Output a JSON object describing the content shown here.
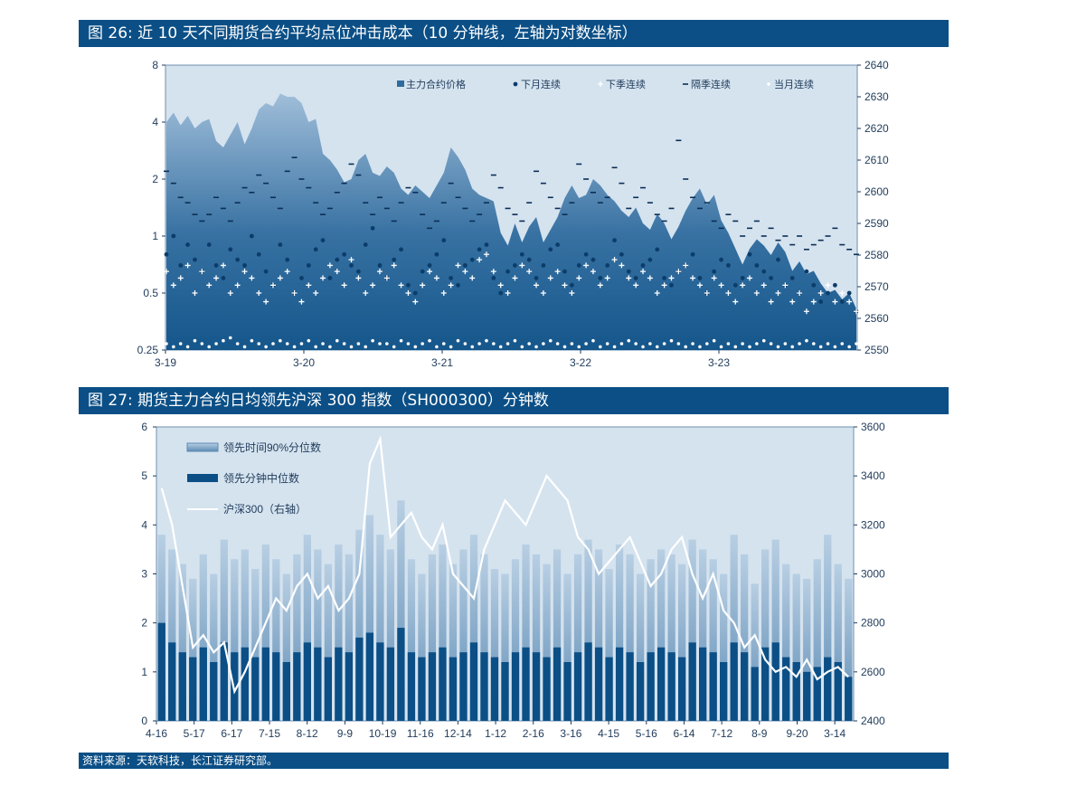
{
  "titles": {
    "fig26": "图 26: 近 10 天不同期货合约平均点位冲击成本（10 分钟线，左轴为对数坐标）",
    "fig27": "图 27: 期货主力合约日均领先沪深 300 指数（SH000300）分钟数"
  },
  "source": "资料来源：天软科技，长江证券研究部。",
  "colors": {
    "title_bar": "#0b4f86",
    "plot_bg": "#d5e3ef",
    "series_dark": "#0b4f86",
    "series_light": "#7fa6c8"
  },
  "chart_data": [
    {
      "id": "fig26",
      "type": "scatter",
      "title": "图 26: 近 10 天不同期货合约平均点位冲击成本（10 分钟线，左轴为对数坐标）",
      "x_ticks": [
        "3-19",
        "3-20",
        "3-21",
        "3-22",
        "3-23"
      ],
      "y_left_scale": "log2",
      "y_left_ticks": [
        "0.25",
        "0.5",
        "1",
        "2",
        "4",
        "8"
      ],
      "y_left_range": [
        0.25,
        8
      ],
      "y_right_ticks": [
        "2550",
        "2560",
        "2570",
        "2580",
        "2590",
        "2600",
        "2610",
        "2620",
        "2630",
        "2640"
      ],
      "y_right_range": [
        2550,
        2640
      ],
      "legend_position": "top-right",
      "series": [
        {
          "name": "主力合约价格",
          "axis": "right",
          "kind": "area",
          "values": [
            2622,
            2625,
            2621,
            2624,
            2620,
            2622,
            2623,
            2616,
            2614,
            2618,
            2622,
            2615,
            2620,
            2626,
            2628,
            2627,
            2631,
            2630,
            2630,
            2628,
            2622,
            2623,
            2612,
            2610,
            2607,
            2603,
            2604,
            2610,
            2612,
            2606,
            2605,
            2608,
            2606,
            2601,
            2599,
            2602,
            2600,
            2598,
            2602,
            2606,
            2614,
            2611,
            2607,
            2601,
            2599,
            2598,
            2597,
            2587,
            2583,
            2590,
            2584,
            2589,
            2592,
            2584,
            2588,
            2592,
            2598,
            2602,
            2598,
            2599,
            2604,
            2602,
            2599,
            2597,
            2594,
            2592,
            2595,
            2590,
            2588,
            2593,
            2590,
            2585,
            2589,
            2594,
            2598,
            2601,
            2596,
            2599,
            2591,
            2587,
            2582,
            2577,
            2582,
            2585,
            2583,
            2580,
            2584,
            2581,
            2575,
            2578,
            2574,
            2575,
            2571,
            2568,
            2569,
            2566,
            2568,
            2563
          ]
        },
        {
          "name": "下月连续",
          "axis": "left",
          "kind": "dot",
          "marker": "dot-dark",
          "values": [
            0.8,
            1.0,
            0.7,
            0.9,
            0.75,
            0.65,
            0.9,
            0.7,
            0.6,
            0.85,
            0.75,
            0.7,
            1.0,
            0.8,
            0.65,
            0.55,
            0.9,
            0.75,
            0.5,
            0.6,
            0.7,
            0.85,
            0.95,
            0.6,
            0.75,
            0.8,
            0.7,
            0.65,
            0.9,
            1.1,
            0.7,
            0.6,
            0.75,
            0.85,
            0.55,
            0.5,
            0.65,
            0.7,
            0.8,
            0.95,
            0.6,
            0.55,
            0.7,
            0.75,
            0.85,
            0.9,
            0.6,
            0.5,
            0.65,
            0.7,
            0.8,
            0.75,
            0.6,
            0.7,
            0.85,
            0.9,
            0.65,
            0.55,
            0.7,
            0.8,
            0.75,
            0.6,
            0.7,
            0.95,
            0.8,
            0.65,
            0.6,
            0.7,
            0.75,
            0.85,
            0.6,
            0.55,
            0.65,
            0.7,
            0.8,
            0.6,
            0.5,
            0.65,
            0.75,
            0.7,
            0.55,
            0.6,
            0.8,
            0.7,
            0.65,
            0.6,
            0.75,
            0.55,
            0.6,
            0.5,
            0.65,
            0.55,
            0.45,
            0.5,
            0.55,
            0.45,
            0.5,
            0.4
          ]
        },
        {
          "name": "下季连续",
          "axis": "left",
          "kind": "dot",
          "marker": "plus",
          "values": [
            0.65,
            0.55,
            0.6,
            0.7,
            0.5,
            0.65,
            0.55,
            0.6,
            0.7,
            0.5,
            0.55,
            0.65,
            0.6,
            0.5,
            0.45,
            0.55,
            0.6,
            0.65,
            0.5,
            0.45,
            0.55,
            0.5,
            0.6,
            0.7,
            0.65,
            0.55,
            0.75,
            0.6,
            0.5,
            0.55,
            0.65,
            0.6,
            0.7,
            0.55,
            0.5,
            0.45,
            0.55,
            0.65,
            0.6,
            0.5,
            0.55,
            0.7,
            0.65,
            0.6,
            0.75,
            0.8,
            0.65,
            0.55,
            0.5,
            0.6,
            0.7,
            0.65,
            0.55,
            0.5,
            0.6,
            0.65,
            0.55,
            0.5,
            0.6,
            0.7,
            0.65,
            0.55,
            0.6,
            0.75,
            0.7,
            0.6,
            0.55,
            0.65,
            0.6,
            0.5,
            0.55,
            0.6,
            0.65,
            0.7,
            0.6,
            0.55,
            0.5,
            0.6,
            0.55,
            0.5,
            0.45,
            0.55,
            0.6,
            0.5,
            0.55,
            0.45,
            0.5,
            0.55,
            0.45,
            0.5,
            0.4,
            0.45,
            0.5,
            0.55,
            0.45,
            0.5,
            0.45,
            0.4
          ]
        },
        {
          "name": "隔季连续",
          "axis": "left",
          "kind": "dot",
          "marker": "dash",
          "values": [
            2.2,
            1.9,
            1.6,
            1.5,
            1.3,
            1.2,
            1.3,
            1.6,
            1.4,
            1.2,
            1.5,
            1.8,
            1.7,
            2.1,
            1.9,
            1.6,
            1.4,
            2.2,
            2.6,
            2.0,
            1.8,
            1.5,
            1.3,
            1.4,
            1.7,
            1.9,
            2.4,
            2.1,
            1.5,
            1.3,
            1.6,
            1.4,
            1.2,
            1.5,
            1.8,
            1.7,
            1.3,
            1.1,
            1.2,
            1.5,
            1.9,
            1.6,
            1.4,
            1.2,
            1.3,
            1.5,
            2.1,
            1.8,
            1.4,
            1.3,
            1.2,
            1.5,
            2.2,
            1.9,
            1.6,
            1.4,
            1.3,
            1.5,
            2.4,
            2.0,
            1.7,
            1.5,
            1.6,
            2.3,
            1.9,
            1.4,
            1.6,
            1.8,
            1.5,
            1.3,
            1.2,
            1.4,
            3.2,
            2.0,
            1.6,
            1.4,
            1.5,
            1.2,
            1.1,
            1.3,
            1.2,
            1.0,
            1.1,
            1.2,
            1.0,
            1.1,
            0.95,
            1.0,
            0.9,
            1.0,
            0.85,
            0.9,
            0.95,
            1.0,
            1.1,
            0.9,
            0.85,
            0.8
          ]
        },
        {
          "name": "当月连续",
          "axis": "left",
          "kind": "dot",
          "marker": "dot-light",
          "values": [
            0.27,
            0.26,
            0.27,
            0.26,
            0.28,
            0.27,
            0.26,
            0.27,
            0.28,
            0.29,
            0.27,
            0.26,
            0.28,
            0.27,
            0.26,
            0.27,
            0.28,
            0.27,
            0.26,
            0.27,
            0.28,
            0.26,
            0.27,
            0.26,
            0.28,
            0.27,
            0.26,
            0.27,
            0.26,
            0.28,
            0.27,
            0.27,
            0.26,
            0.28,
            0.27,
            0.26,
            0.27,
            0.28,
            0.26,
            0.27,
            0.26,
            0.28,
            0.27,
            0.26,
            0.27,
            0.28,
            0.27,
            0.26,
            0.27,
            0.28,
            0.26,
            0.27,
            0.26,
            0.27,
            0.28,
            0.27,
            0.26,
            0.27,
            0.26,
            0.27,
            0.28,
            0.26,
            0.27,
            0.26,
            0.27,
            0.28,
            0.27,
            0.26,
            0.27,
            0.26,
            0.27,
            0.28,
            0.27,
            0.26,
            0.27,
            0.26,
            0.27,
            0.28,
            0.26,
            0.27,
            0.26,
            0.27,
            0.26,
            0.27,
            0.28,
            0.27,
            0.26,
            0.27,
            0.26,
            0.27,
            0.28,
            0.27,
            0.26,
            0.27,
            0.26,
            0.27,
            0.26,
            0.27
          ]
        }
      ]
    },
    {
      "id": "fig27",
      "type": "bar",
      "title": "图 27: 期货主力合约日均领先沪深 300 指数（SH000300）分钟数",
      "x_ticks": [
        "4-16",
        "5-17",
        "6-17",
        "7-15",
        "8-12",
        "9-9",
        "10-19",
        "11-16",
        "12-14",
        "1-12",
        "2-16",
        "3-16",
        "4-15",
        "5-16",
        "6-14",
        "7-12",
        "8-9",
        "9-20",
        "3-14"
      ],
      "y_left_ticks": [
        "0",
        "1",
        "2",
        "3",
        "4",
        "5",
        "6"
      ],
      "y_left_range": [
        0,
        6
      ],
      "y_right_ticks": [
        "2400",
        "2600",
        "2800",
        "3000",
        "3200",
        "3400",
        "3600"
      ],
      "y_right_range": [
        2400,
        3600
      ],
      "legend_position": "top-left",
      "series": [
        {
          "name": "领先时间90%分位数",
          "axis": "left",
          "kind": "bar-light",
          "values": [
            3.8,
            3.5,
            3.2,
            2.9,
            3.4,
            3.0,
            3.7,
            3.3,
            3.5,
            3.1,
            3.6,
            3.3,
            3.0,
            3.4,
            3.8,
            3.5,
            3.2,
            3.6,
            3.4,
            3.9,
            4.2,
            3.8,
            3.5,
            4.5,
            3.3,
            3.0,
            3.4,
            3.6,
            3.2,
            3.5,
            3.8,
            3.4,
            3.1,
            3.0,
            3.3,
            3.6,
            3.4,
            3.2,
            3.5,
            3.0,
            3.4,
            3.7,
            3.5,
            3.1,
            3.6,
            3.4,
            3.0,
            3.3,
            3.5,
            3.4,
            3.2,
            3.7,
            3.5,
            3.3,
            3.0,
            3.8,
            3.4,
            2.8,
            3.5,
            3.7,
            3.2,
            3.0,
            2.9,
            3.3,
            3.8,
            3.2,
            2.9
          ]
        },
        {
          "name": "领先分钟中位数",
          "axis": "left",
          "kind": "bar-dark",
          "values": [
            2.0,
            1.6,
            1.4,
            1.3,
            1.5,
            1.2,
            1.6,
            1.4,
            1.5,
            1.3,
            1.5,
            1.4,
            1.2,
            1.4,
            1.6,
            1.5,
            1.3,
            1.5,
            1.4,
            1.7,
            1.8,
            1.6,
            1.5,
            1.9,
            1.4,
            1.3,
            1.4,
            1.5,
            1.3,
            1.4,
            1.6,
            1.4,
            1.3,
            1.2,
            1.4,
            1.5,
            1.4,
            1.3,
            1.5,
            1.2,
            1.4,
            1.6,
            1.5,
            1.3,
            1.5,
            1.4,
            1.2,
            1.4,
            1.5,
            1.4,
            1.3,
            1.6,
            1.5,
            1.4,
            1.2,
            1.6,
            1.4,
            1.1,
            1.5,
            1.6,
            1.3,
            1.2,
            1.0,
            1.1,
            1.3,
            1.2,
            0.9
          ]
        },
        {
          "name": "沪深300（右轴）",
          "axis": "right",
          "kind": "line",
          "values": [
            3350,
            3200,
            2950,
            2700,
            2750,
            2680,
            2720,
            2520,
            2600,
            2700,
            2800,
            2900,
            2850,
            2950,
            3000,
            2900,
            2950,
            2850,
            2900,
            3000,
            3450,
            3550,
            3150,
            3200,
            3250,
            3150,
            3100,
            3200,
            3000,
            2950,
            2900,
            3100,
            3200,
            3300,
            3250,
            3200,
            3300,
            3400,
            3350,
            3300,
            3150,
            3100,
            3000,
            3050,
            3100,
            3150,
            3050,
            2950,
            3000,
            3100,
            3150,
            3000,
            2900,
            3000,
            2850,
            2800,
            2700,
            2750,
            2650,
            2600,
            2620,
            2580,
            2650,
            2570,
            2600,
            2620,
            2580
          ]
        }
      ]
    }
  ]
}
